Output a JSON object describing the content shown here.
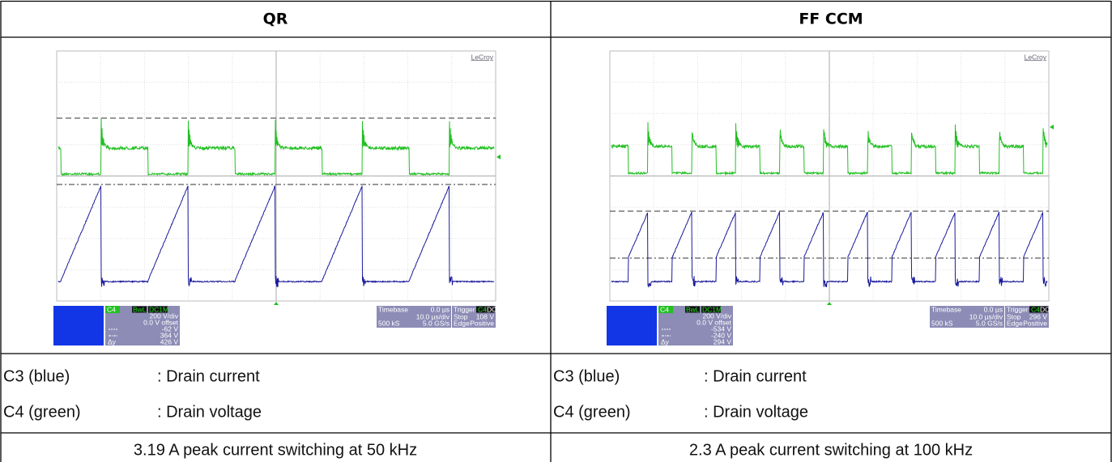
{
  "table": {
    "columns": [
      {
        "header": "QR",
        "scope": {
          "brand": "LeCroy",
          "channel": {
            "label": "C4",
            "bandwidth": "BwL",
            "coupling": "DC1M",
            "scale": "200 V/div",
            "offset": "0.0 V offset",
            "cursor1": "-62 V",
            "cursor2": "364 V",
            "delta_label": "Δy",
            "delta": "426 V"
          },
          "timebase": {
            "label": "Timebase",
            "delay": "0.0 µs",
            "scale": "10.0 µs/div",
            "samples": "500 kS",
            "rate": "5.0 GS/s"
          },
          "trigger": {
            "label": "Trigger",
            "source": "C4",
            "coupling": "DC",
            "mode": "Stop",
            "level": "108 V",
            "type": "Edge",
            "slope": "Positive"
          }
        },
        "legend": [
          {
            "channel": "C3 (blue)",
            "description": ": Drain current"
          },
          {
            "channel": "C4 (green)",
            "description": ": Drain voltage"
          }
        ],
        "caption": "3.19 A peak current switching at 50 kHz"
      },
      {
        "header": "FF CCM",
        "scope": {
          "brand": "LeCroy",
          "channel": {
            "label": "C4",
            "bandwidth": "BwL",
            "coupling": "DC1M",
            "scale": "200 V/div",
            "offset": "0.0 V offset",
            "cursor1": "-534 V",
            "cursor2": "-240 V",
            "delta_label": "Δy",
            "delta": "294 V"
          },
          "timebase": {
            "label": "Timebase",
            "delay": "0.0 µs",
            "scale": "10.0 µs/div",
            "samples": "500 kS",
            "rate": "5.0 GS/s"
          },
          "trigger": {
            "label": "Trigger",
            "source": "C4",
            "coupling": "DC",
            "mode": "Stop",
            "level": "296 V",
            "type": "Edge",
            "slope": "Positive"
          }
        },
        "legend": [
          {
            "channel": "C3 (blue)",
            "description": ": Drain current"
          },
          {
            "channel": "C4 (green)",
            "description": ": Drain voltage"
          }
        ],
        "caption": "2.3 A peak current switching at 100 kHz"
      }
    ]
  }
}
